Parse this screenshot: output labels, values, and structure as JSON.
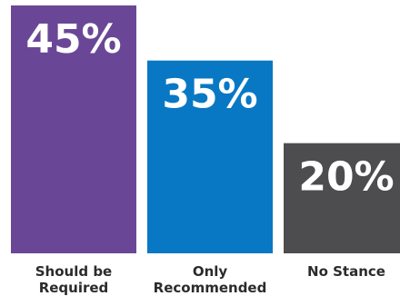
{
  "chart_data": {
    "type": "bar",
    "categories": [
      [
        "Should be",
        "Required"
      ],
      [
        "Only",
        "Recommended"
      ],
      [
        "No Stance"
      ]
    ],
    "values": [
      45,
      35,
      20
    ],
    "value_labels": [
      "45%",
      "35%",
      "20%"
    ],
    "bar_colors": [
      "#6a4796",
      "#0878c4",
      "#4d4d50"
    ],
    "ylim": [
      0,
      45
    ],
    "grid": false,
    "legend": "none"
  }
}
